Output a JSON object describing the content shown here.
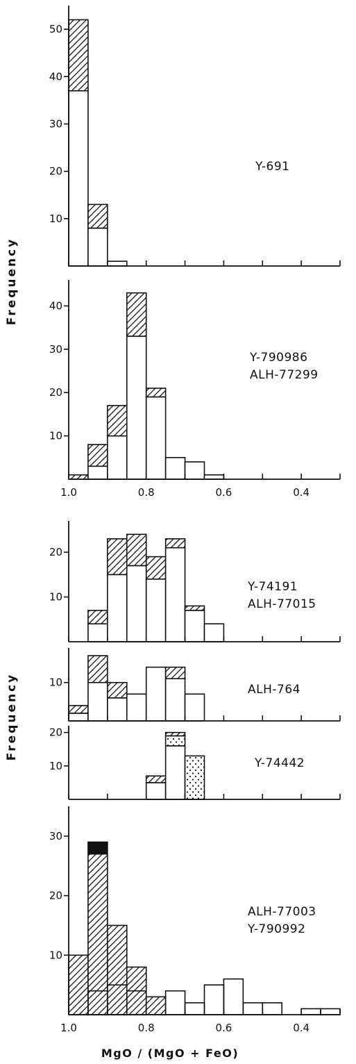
{
  "chart_data": {
    "type": "bar",
    "x_axis": {
      "ticks": [
        1.0,
        0.8,
        0.6,
        0.4
      ],
      "tick_labels": [
        "1.0",
        "0.8",
        "0.6",
        "0.4"
      ],
      "xlim": [
        1.0,
        0.3
      ],
      "bin_width": 0.05,
      "title": "MgO / (MgO + FeO)"
    },
    "y_axis_label": "Frequency",
    "panels": [
      {
        "label_lines": [
          "Y-691"
        ],
        "ylim": [
          0,
          55
        ],
        "yticks": [
          10,
          20,
          30,
          40,
          50
        ],
        "ytick_labels": [
          "10",
          "20",
          "30",
          "40",
          "50"
        ],
        "bins": [
          {
            "x": [
              1.0,
              0.95
            ],
            "open": 37,
            "hatched": 15
          },
          {
            "x": [
              0.95,
              0.9
            ],
            "open": 8,
            "hatched": 5
          },
          {
            "x": [
              0.9,
              0.85
            ],
            "open": 1,
            "hatched": 0
          }
        ]
      },
      {
        "label_lines": [
          "Y-790986",
          "ALH-77299"
        ],
        "ylim": [
          0,
          46
        ],
        "yticks": [
          10,
          20,
          30,
          40
        ],
        "ytick_labels": [
          "10",
          "20",
          "30",
          "40"
        ],
        "bins": [
          {
            "x": [
              1.0,
              0.95
            ],
            "open": 0,
            "hatched": 1
          },
          {
            "x": [
              0.95,
              0.9
            ],
            "open": 3,
            "hatched": 5
          },
          {
            "x": [
              0.9,
              0.85
            ],
            "open": 10,
            "hatched": 7
          },
          {
            "x": [
              0.85,
              0.8
            ],
            "open": 33,
            "hatched": 10
          },
          {
            "x": [
              0.8,
              0.75
            ],
            "open": 19,
            "hatched": 2
          },
          {
            "x": [
              0.75,
              0.7
            ],
            "open": 5,
            "hatched": 0
          },
          {
            "x": [
              0.7,
              0.65
            ],
            "open": 4,
            "hatched": 0
          },
          {
            "x": [
              0.65,
              0.6
            ],
            "open": 1,
            "hatched": 0
          }
        ]
      },
      {
        "label_lines": [
          "Y-74191",
          "ALH-77015"
        ],
        "ylim": [
          0,
          27
        ],
        "yticks": [
          10,
          20
        ],
        "ytick_labels": [
          "10",
          "20"
        ],
        "bins": [
          {
            "x": [
              0.95,
              0.9
            ],
            "open": 4,
            "hatched": 3
          },
          {
            "x": [
              0.9,
              0.85
            ],
            "open": 15,
            "hatched": 8
          },
          {
            "x": [
              0.85,
              0.8
            ],
            "open": 17,
            "hatched": 7
          },
          {
            "x": [
              0.8,
              0.75
            ],
            "open": 14,
            "hatched": 5
          },
          {
            "x": [
              0.75,
              0.7
            ],
            "open": 21,
            "hatched": 2
          },
          {
            "x": [
              0.7,
              0.65
            ],
            "open": 7,
            "hatched": 1
          },
          {
            "x": [
              0.65,
              0.6
            ],
            "open": 4,
            "hatched": 0
          }
        ]
      },
      {
        "label_lines": [
          "ALH-764"
        ],
        "ylim": [
          0,
          19
        ],
        "yticks": [
          10
        ],
        "ytick_labels": [
          "10"
        ],
        "bins": [
          {
            "x": [
              1.0,
              0.95
            ],
            "open": 2,
            "hatched": 2
          },
          {
            "x": [
              0.95,
              0.9
            ],
            "open": 10,
            "hatched": 7
          },
          {
            "x": [
              0.9,
              0.85
            ],
            "open": 6,
            "hatched": 4
          },
          {
            "x": [
              0.85,
              0.8
            ],
            "open": 7,
            "hatched": 0
          },
          {
            "x": [
              0.8,
              0.75
            ],
            "open": 14,
            "hatched": 0
          },
          {
            "x": [
              0.75,
              0.7
            ],
            "open": 11,
            "hatched": 3
          },
          {
            "x": [
              0.7,
              0.65
            ],
            "open": 7,
            "hatched": 0
          }
        ]
      },
      {
        "label_lines": [
          "Y-74442"
        ],
        "ylim": [
          0,
          22
        ],
        "yticks": [
          10,
          20
        ],
        "ytick_labels": [
          "10",
          "20"
        ],
        "bins": [
          {
            "x": [
              0.8,
              0.75
            ],
            "open": 5,
            "hatched": 2
          },
          {
            "x": [
              0.75,
              0.7
            ],
            "open": 16,
            "dotted": 3,
            "hatched": 1
          },
          {
            "x": [
              0.7,
              0.65
            ],
            "open": 0,
            "dotted": 13
          }
        ]
      },
      {
        "label_lines": [
          "ALH-77003",
          "Y-790992"
        ],
        "ylim": [
          0,
          35
        ],
        "yticks": [
          10,
          20,
          30
        ],
        "ytick_labels": [
          "10",
          "20",
          "30"
        ],
        "hatch_from_zero": true,
        "bins": [
          {
            "x": [
              1.0,
              0.95
            ],
            "open": 0,
            "hatched": 10
          },
          {
            "x": [
              0.95,
              0.9
            ],
            "open": 4,
            "hatched": 27,
            "solid": 2
          },
          {
            "x": [
              0.9,
              0.85
            ],
            "open": 5,
            "hatched": 15
          },
          {
            "x": [
              0.85,
              0.8
            ],
            "open": 4,
            "hatched": 8
          },
          {
            "x": [
              0.8,
              0.75
            ],
            "open": 0,
            "hatched": 3
          },
          {
            "x": [
              0.75,
              0.7
            ],
            "open": 4,
            "hatched": 0
          },
          {
            "x": [
              0.7,
              0.65
            ],
            "open": 2,
            "hatched": 0
          },
          {
            "x": [
              0.65,
              0.6
            ],
            "open": 5,
            "hatched": 0
          },
          {
            "x": [
              0.6,
              0.55
            ],
            "open": 6,
            "hatched": 0
          },
          {
            "x": [
              0.55,
              0.5
            ],
            "open": 2,
            "hatched": 0
          },
          {
            "x": [
              0.5,
              0.45
            ],
            "open": 2,
            "hatched": 0
          },
          {
            "x": [
              0.4,
              0.35
            ],
            "open": 1,
            "hatched": 0
          },
          {
            "x": [
              0.35,
              0.3
            ],
            "open": 1,
            "hatched": 0
          }
        ]
      }
    ]
  }
}
